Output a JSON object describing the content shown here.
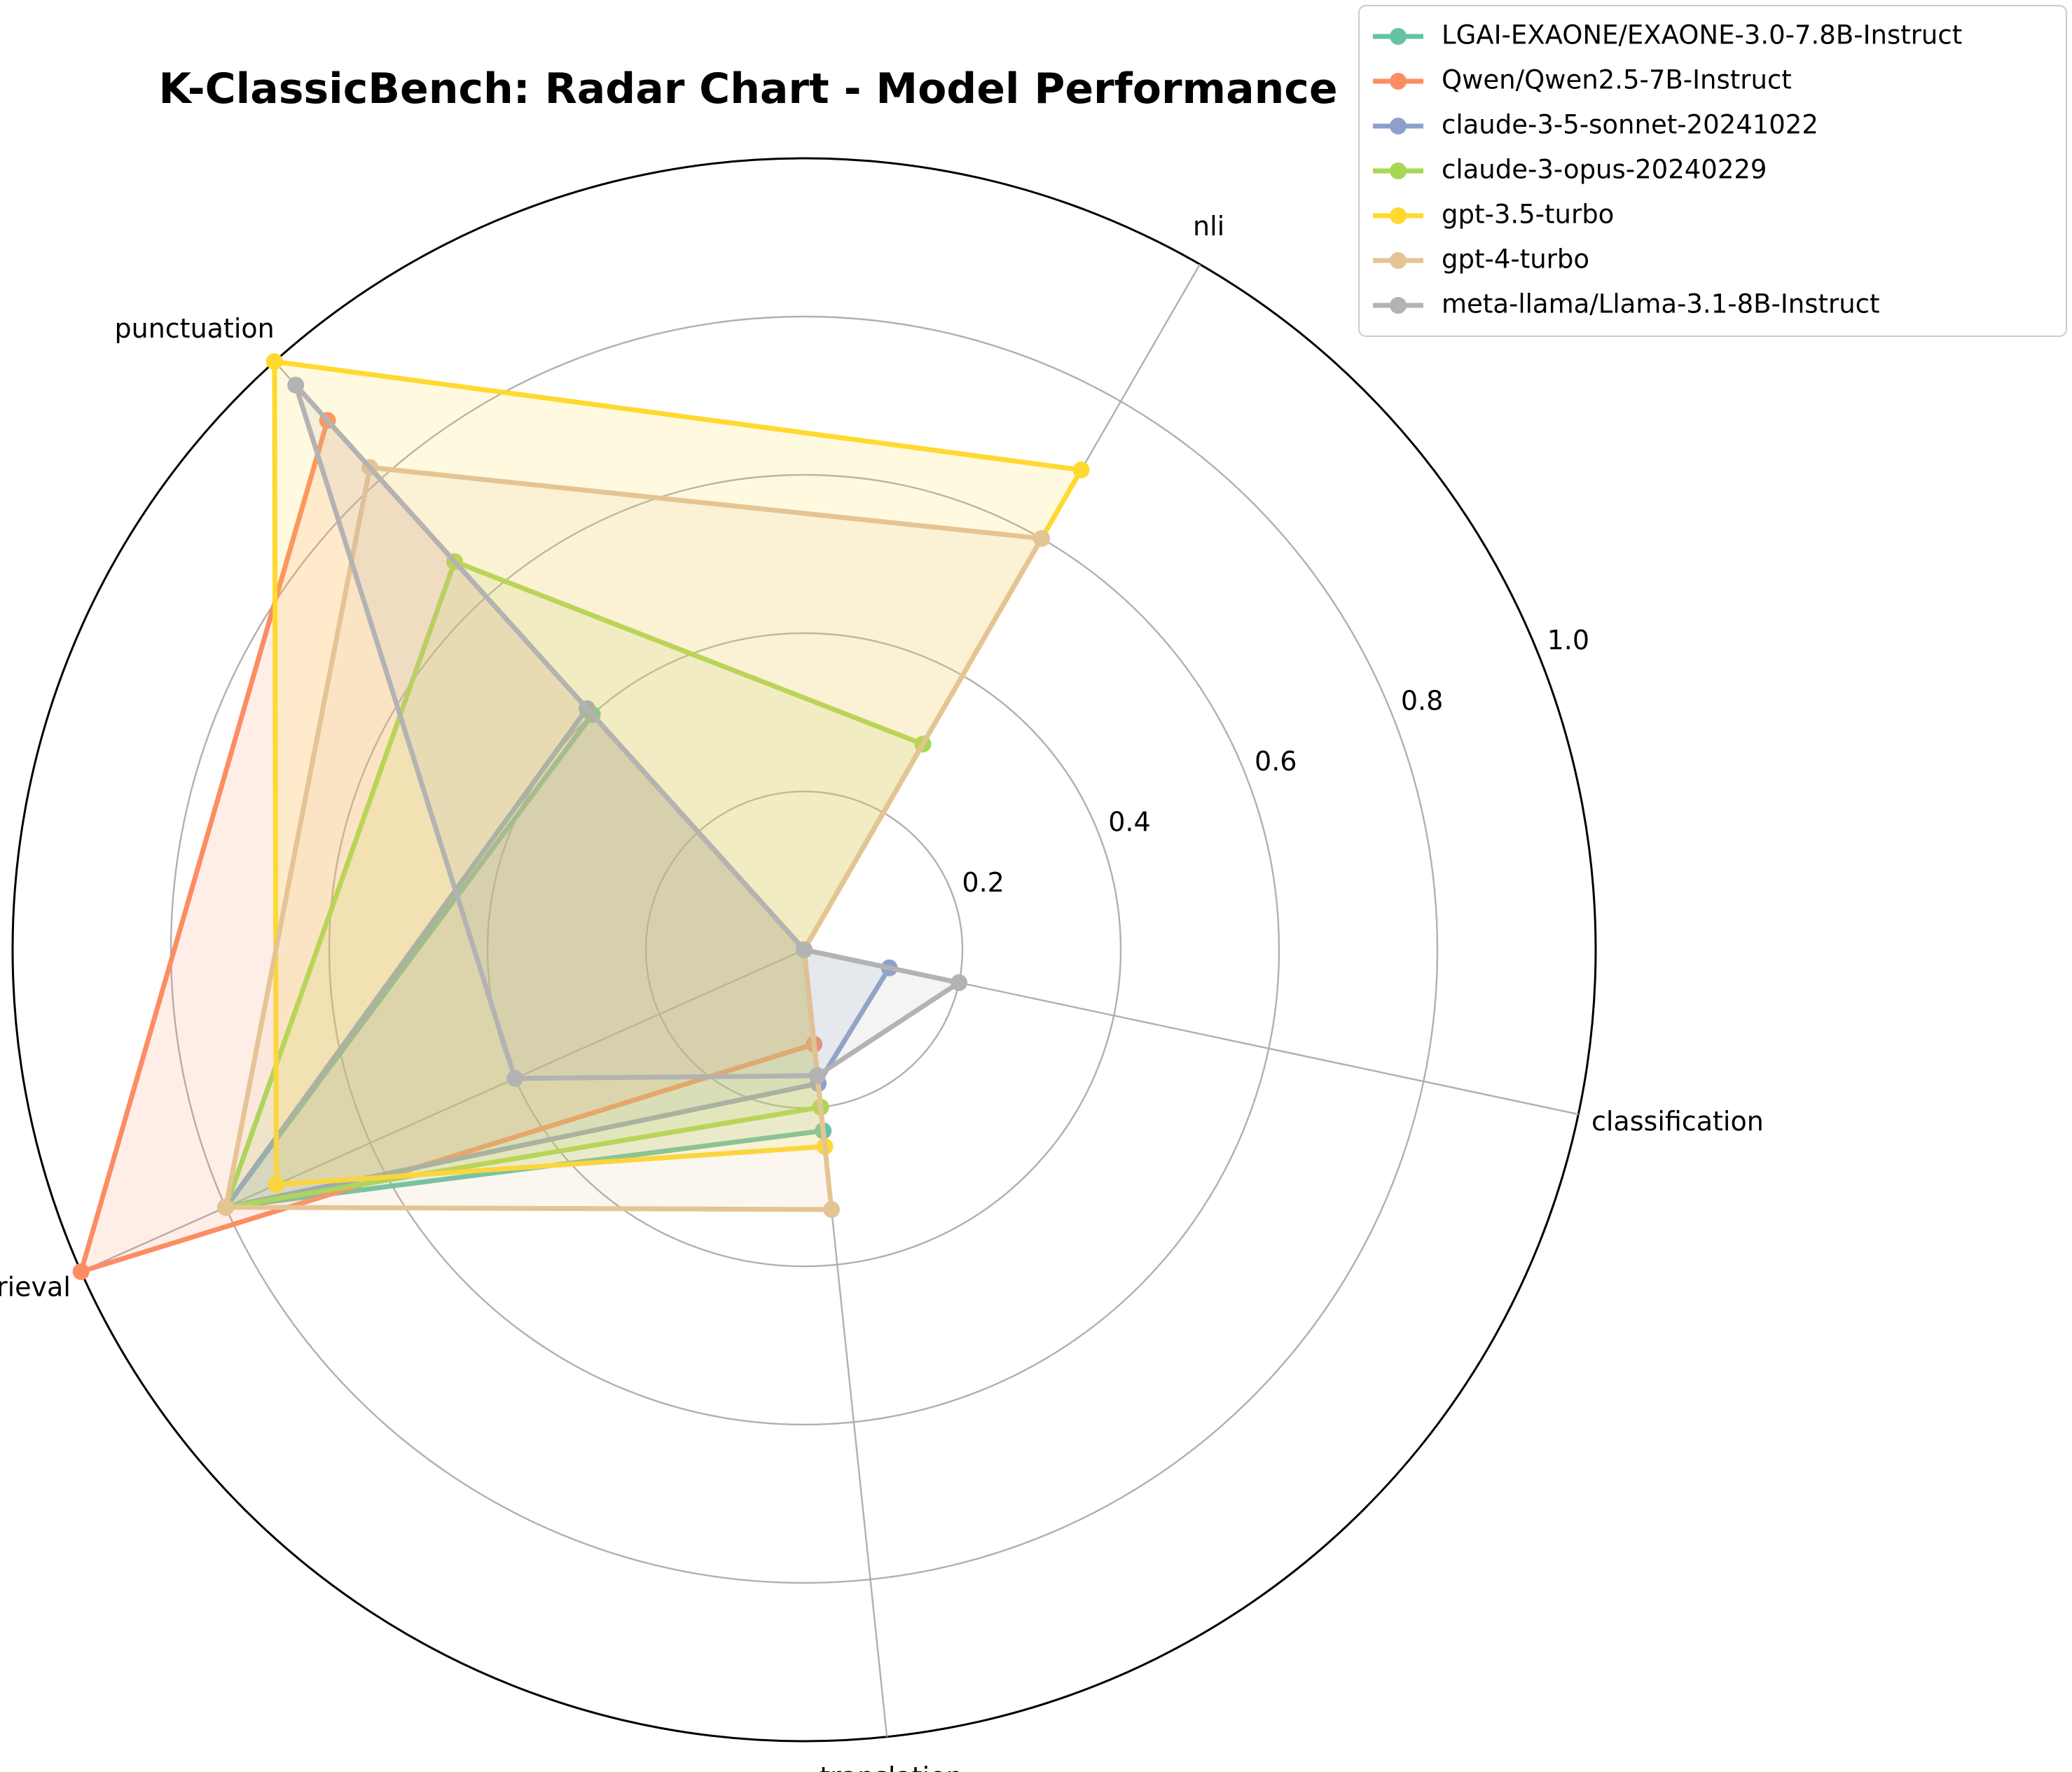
{
  "chart_data": {
    "type": "radar",
    "title": "K-ClassicBench: Radar Chart - Model Performance",
    "axes": [
      "classification",
      "nli",
      "punctuation",
      "retrieval",
      "translation"
    ],
    "rlim": [
      0,
      1.0
    ],
    "r_ticks": [
      "0.2",
      "0.4",
      "0.6",
      "0.8",
      "1.0"
    ],
    "r_tick_values": [
      0.2,
      0.4,
      0.6,
      0.8,
      1.0
    ],
    "grid": true,
    "legend_position": "top-right",
    "series": [
      {
        "name": "LGAI-EXAONE/EXAONE-3.0-7.8B-Instruct",
        "color": "#66c2a5",
        "values": [
          0.0,
          0.0,
          0.4,
          0.8,
          0.23
        ]
      },
      {
        "name": "Qwen/Qwen2.5-7B-Instruct",
        "color": "#fc8d62",
        "values": [
          0.0,
          0.0,
          0.9,
          1.0,
          0.12
        ]
      },
      {
        "name": "claude-3-5-sonnet-20241022",
        "color": "#8da0cb",
        "values": [
          0.11,
          0.0,
          0.41,
          0.8,
          0.17
        ]
      },
      {
        "name": "claude-3-opus-20240229",
        "color": "#a6d854",
        "values": [
          0.0,
          0.3,
          0.66,
          0.8,
          0.2
        ]
      },
      {
        "name": "gpt-3.5-turbo",
        "color": "#ffd92f",
        "values": [
          0.0,
          0.7,
          1.0,
          0.73,
          0.25
        ]
      },
      {
        "name": "gpt-4-turbo",
        "color": "#e5c494",
        "values": [
          0.0,
          0.6,
          0.82,
          0.8,
          0.33
        ]
      },
      {
        "name": "meta-llama/Llama-3.1-8B-Instruct",
        "color": "#b3b3b3",
        "values": [
          0.2,
          0.0,
          0.96,
          0.4,
          0.16
        ]
      }
    ]
  }
}
